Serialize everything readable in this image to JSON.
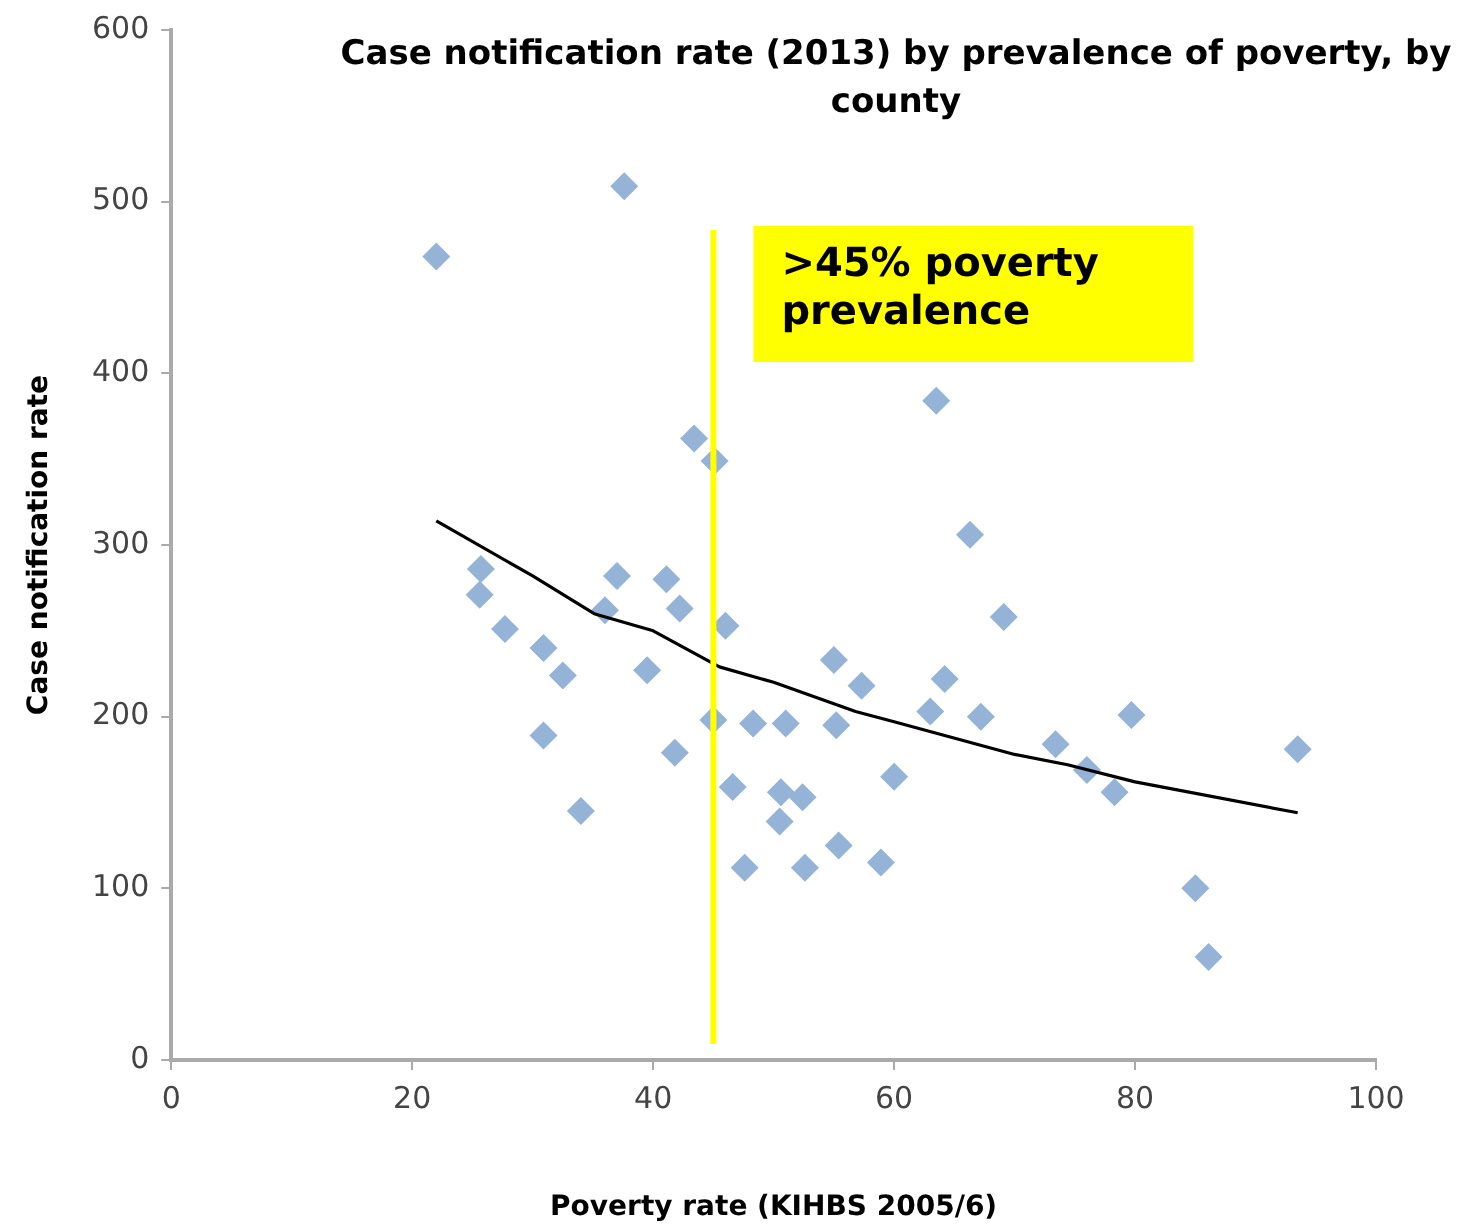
{
  "chart_data": {
    "type": "scatter",
    "title": "Case notification rate (2013) by prevalence of poverty, by county",
    "xlabel": "Poverty rate (KIHBS 2005/6)",
    "ylabel": "Case notification rate",
    "xlim": [
      0,
      100
    ],
    "xticks": [
      0,
      20,
      40,
      60,
      80,
      100
    ],
    "ylim": [
      0,
      600
    ],
    "yticks": [
      0,
      100,
      200,
      300,
      400,
      500,
      600
    ],
    "grid": false,
    "legend": false,
    "marker": "diamond",
    "series": [
      {
        "color": "#95b3d7",
        "x": [
          22.0,
          37.6,
          25.7,
          25.6,
          27.7,
          30.9,
          32.5,
          30.9,
          34.0,
          36.0,
          37.0,
          39.5,
          41.1,
          42.2,
          41.8,
          43.4,
          45.1,
          46.0,
          45.0,
          46.6,
          47.6,
          48.3,
          51.0,
          50.5,
          50.6,
          52.4,
          52.6,
          55.0,
          55.2,
          55.4,
          57.3,
          58.9,
          60.0,
          63.0,
          63.5,
          64.2,
          66.3,
          67.2,
          69.1,
          73.4,
          76.0,
          78.3,
          79.7,
          85.0,
          86.1,
          93.5
        ],
        "values": [
          468,
          509,
          286,
          271,
          251,
          240,
          224,
          189,
          145,
          262,
          282,
          227,
          280,
          263,
          179,
          362,
          349,
          253,
          198,
          159,
          112,
          196,
          196,
          139,
          156,
          153,
          112,
          233,
          195,
          125,
          218,
          115,
          165,
          203,
          384,
          222,
          306,
          200,
          258,
          184,
          169,
          156,
          201,
          100,
          60,
          181
        ]
      },
      {
        "type": "line",
        "color": "#000000",
        "marker": "none",
        "line_style": "solid",
        "x": [
          22,
          30,
          35.1,
          40,
          45.5,
          50,
          56.8,
          60,
          70,
          74.4,
          80,
          93.5
        ],
        "values": [
          314,
          282,
          260,
          250,
          229,
          220,
          203,
          197,
          178,
          172,
          162,
          144
        ]
      }
    ],
    "ref_lines": [
      {
        "axis": "x",
        "value": 45,
        "label": ">45% poverty prevalence",
        "color": "#ffff00"
      }
    ]
  }
}
